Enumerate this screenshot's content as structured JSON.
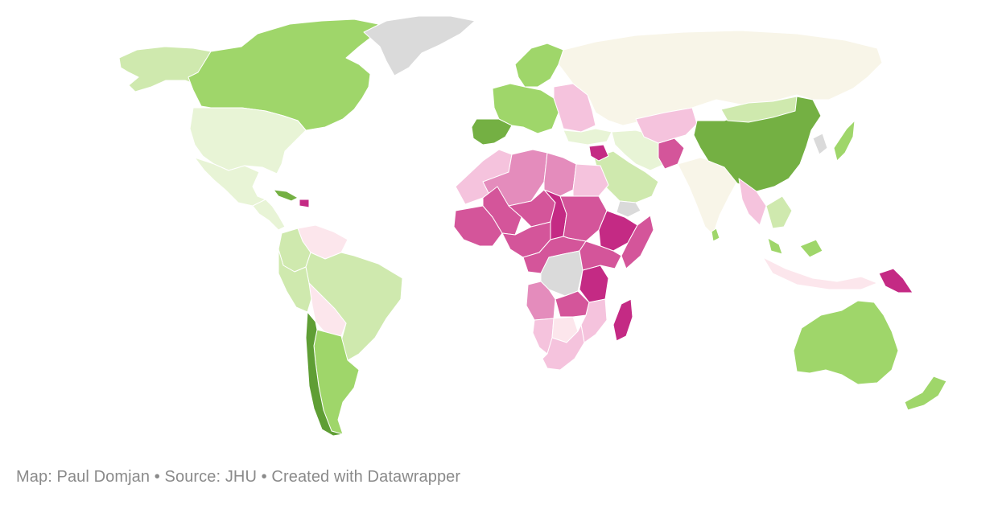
{
  "credit": {
    "text": "Map: Paul Domjan • Source: JHU • Created with Datawrapper"
  },
  "palette": {
    "green_dark": "#5f9e35",
    "green_mid": "#74b043",
    "green": "#9fd66a",
    "green_light": "#cfe9ae",
    "green_pale": "#e8f4d6",
    "neutral": "#f8f5e8",
    "pink_pale": "#fce6ec",
    "pink_light": "#f5c3dd",
    "pink": "#e48cbc",
    "pink_mid": "#d4559a",
    "magenta": "#c42a84",
    "no_data": "#dadada"
  },
  "regions": [
    {
      "name": "Alaska",
      "color": "green_light"
    },
    {
      "name": "Canada",
      "color": "green"
    },
    {
      "name": "Greenland",
      "color": "no_data"
    },
    {
      "name": "United States",
      "color": "green_pale"
    },
    {
      "name": "Mexico",
      "color": "green_pale"
    },
    {
      "name": "Central America",
      "color": "green_pale"
    },
    {
      "name": "Cuba",
      "color": "green_mid"
    },
    {
      "name": "Haiti",
      "color": "magenta"
    },
    {
      "name": "Venezuela",
      "color": "pink_pale"
    },
    {
      "name": "Colombia",
      "color": "green_light"
    },
    {
      "name": "Brazil",
      "color": "green_light"
    },
    {
      "name": "Peru",
      "color": "green_light"
    },
    {
      "name": "Bolivia",
      "color": "pink_pale"
    },
    {
      "name": "Argentina",
      "color": "green"
    },
    {
      "name": "Chile",
      "color": "green_dark"
    },
    {
      "name": "Iberia",
      "color": "green_mid"
    },
    {
      "name": "Western Europe",
      "color": "green"
    },
    {
      "name": "Scandinavia",
      "color": "green"
    },
    {
      "name": "Eastern Europe",
      "color": "pink_light"
    },
    {
      "name": "Russia",
      "color": "neutral"
    },
    {
      "name": "Turkey",
      "color": "green_pale"
    },
    {
      "name": "Middle East",
      "color": "green_pale"
    },
    {
      "name": "Saudi Arabia",
      "color": "green_light"
    },
    {
      "name": "Yemen",
      "color": "no_data"
    },
    {
      "name": "Syria",
      "color": "magenta"
    },
    {
      "name": "Afghanistan",
      "color": "pink_mid"
    },
    {
      "name": "Central Asia",
      "color": "pink_light"
    },
    {
      "name": "India",
      "color": "neutral"
    },
    {
      "name": "China",
      "color": "green_mid"
    },
    {
      "name": "Mongolia",
      "color": "green_light"
    },
    {
      "name": "Japan",
      "color": "green"
    },
    {
      "name": "Korea",
      "color": "no_data"
    },
    {
      "name": "Southeast Asia",
      "color": "pink_light"
    },
    {
      "name": "Vietnam",
      "color": "green_light"
    },
    {
      "name": "Malaysia",
      "color": "green"
    },
    {
      "name": "Indonesia",
      "color": "pink_pale"
    },
    {
      "name": "Papua New Guinea",
      "color": "magenta"
    },
    {
      "name": "Australia",
      "color": "green"
    },
    {
      "name": "New Zealand",
      "color": "green"
    },
    {
      "name": "North Africa West",
      "color": "pink_light"
    },
    {
      "name": "Algeria",
      "color": "pink"
    },
    {
      "name": "Libya",
      "color": "pink"
    },
    {
      "name": "Egypt",
      "color": "pink_light"
    },
    {
      "name": "West Africa",
      "color": "pink_mid"
    },
    {
      "name": "Mali",
      "color": "pink_mid"
    },
    {
      "name": "Niger",
      "color": "pink_mid"
    },
    {
      "name": "Chad",
      "color": "magenta"
    },
    {
      "name": "Sudan",
      "color": "pink_mid"
    },
    {
      "name": "Ethiopia",
      "color": "magenta"
    },
    {
      "name": "Somalia",
      "color": "pink_mid"
    },
    {
      "name": "Nigeria",
      "color": "pink_mid"
    },
    {
      "name": "Central Africa",
      "color": "pink_mid"
    },
    {
      "name": "DR Congo",
      "color": "no_data"
    },
    {
      "name": "Tanzania",
      "color": "magenta"
    },
    {
      "name": "Kenya",
      "color": "pink_mid"
    },
    {
      "name": "Angola",
      "color": "pink"
    },
    {
      "name": "Zambia",
      "color": "pink_mid"
    },
    {
      "name": "Mozambique",
      "color": "pink_light"
    },
    {
      "name": "Namibia",
      "color": "pink_light"
    },
    {
      "name": "Botswana",
      "color": "pink_pale"
    },
    {
      "name": "South Africa",
      "color": "pink_light"
    },
    {
      "name": "Madagascar",
      "color": "magenta"
    },
    {
      "name": "Sri Lanka",
      "color": "green"
    }
  ]
}
